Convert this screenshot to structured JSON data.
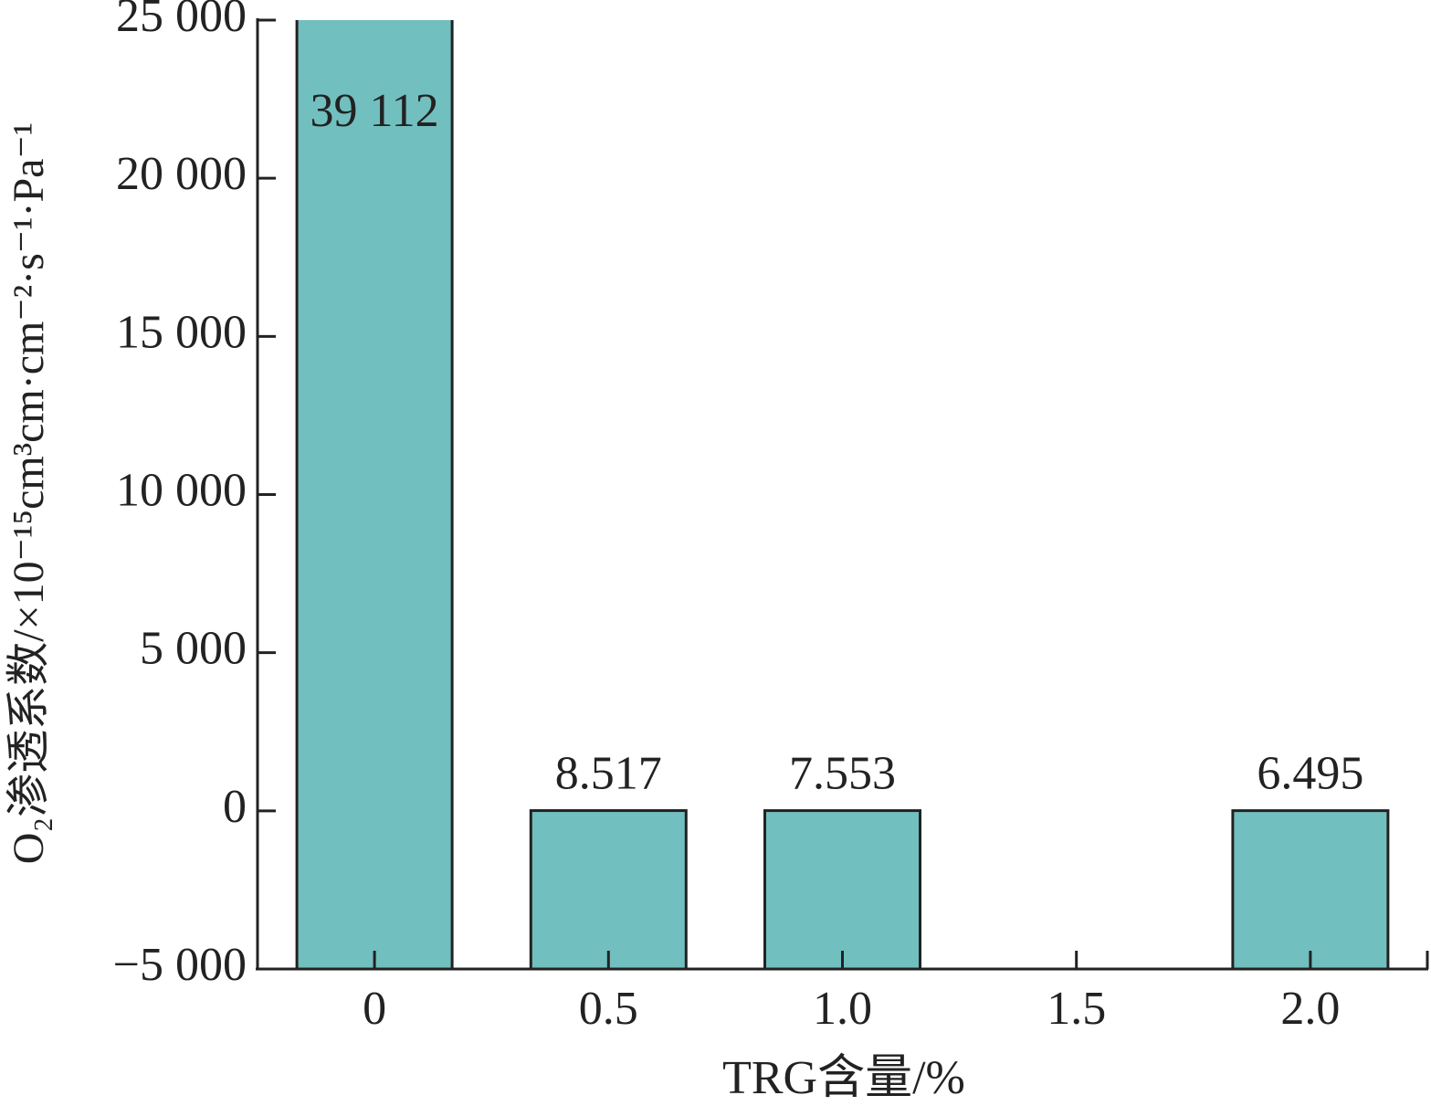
{
  "chart_data": {
    "type": "bar",
    "x_label": "TRG含量/%",
    "y_label": "O₂渗透系数/×10⁻¹⁵cm³cm·cm⁻²·s⁻¹·Pa⁻¹",
    "categories": [
      "0",
      "0.5",
      "1.0",
      "1.5",
      "2.0"
    ],
    "values": [
      39112,
      8.517,
      7.553,
      null,
      6.495
    ],
    "value_labels": [
      "39 112",
      "8.517",
      "7.553",
      null,
      "6.495"
    ],
    "color": "#72bfbf",
    "ylim": [
      -5000,
      25000
    ],
    "yticks": [
      {
        "value": -5000,
        "label": "−5 000"
      },
      0,
      {
        "value": 5000,
        "label": "5 000"
      },
      {
        "value": 10000,
        "label": "10 000"
      },
      {
        "value": 15000,
        "label": "15 000"
      },
      {
        "value": 20000,
        "label": "20 000"
      },
      {
        "value": 25000,
        "label": "25 000"
      }
    ],
    "grid": false
  }
}
